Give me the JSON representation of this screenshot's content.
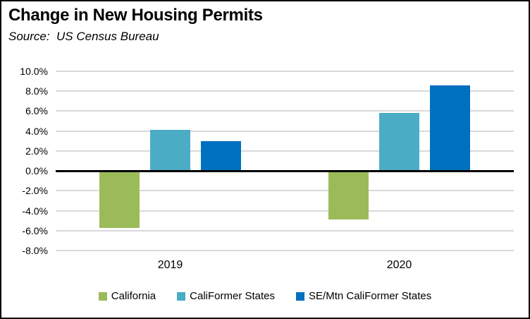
{
  "header": {
    "title": "Change in New Housing Permits",
    "source": "Source:  US Census Bureau"
  },
  "chart_data": {
    "type": "bar",
    "title": "Change in New Housing Permits",
    "subtitle": "Source:  US Census Bureau",
    "categories": [
      "2019",
      "2020"
    ],
    "series": [
      {
        "name": "California",
        "color": "#9BBB59",
        "values": [
          -5.7,
          -4.9
        ]
      },
      {
        "name": "CaliFormer States",
        "color": "#4BACC6",
        "values": [
          4.1,
          5.8
        ]
      },
      {
        "name": "SE/Mtn CaliFormer States",
        "color": "#0070C0",
        "values": [
          3.0,
          8.6
        ]
      }
    ],
    "ylim": [
      -8,
      10
    ],
    "yticks": {
      "values": [
        10,
        8,
        6,
        4,
        2,
        0,
        -2,
        -4,
        -6,
        -8
      ],
      "labels": [
        "10.0%",
        "8.0%",
        "6.0%",
        "4.0%",
        "2.0%",
        "0.0%",
        "-2.0%",
        "-4.0%",
        "-6.0%",
        "-8.0%"
      ]
    },
    "grid": true,
    "legend_position": "bottom",
    "colors": {
      "gridline": "#D9D9D9",
      "zero_line": "#000000",
      "background": "#FFFFFF",
      "border": "#000000",
      "text": "#000000"
    }
  }
}
